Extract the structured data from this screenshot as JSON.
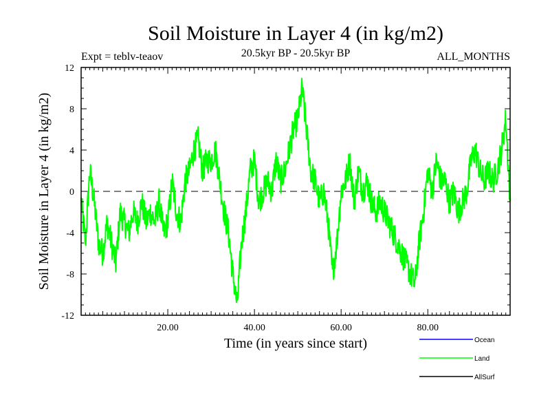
{
  "chart_data": {
    "type": "line",
    "title": "Soil Moisture in Layer 4 (in kg/m2)",
    "subtitle_left": "Expt = teblv-teaov",
    "subtitle_center": "20.5kyr BP - 20.5kyr BP",
    "subtitle_right": "ALL_MONTHS",
    "xlabel": "Time (in years since start)",
    "ylabel": "Soil Moisture in Layer 4 (in kg/m2)",
    "xlim": [
      0,
      99
    ],
    "ylim": [
      -12,
      12
    ],
    "x_ticks": [
      20,
      40,
      60,
      80
    ],
    "x_tick_labels": [
      "20.00",
      "40.00",
      "60.00",
      "80.00"
    ],
    "y_ticks": [
      -12,
      -8,
      -4,
      0,
      4,
      8,
      12
    ],
    "y_tick_labels": [
      "-12",
      "-8",
      "-4",
      "0",
      "4",
      "8",
      "12"
    ],
    "zero_line": "dashed",
    "legend": [
      {
        "name": "Ocean",
        "color": "#0000ff"
      },
      {
        "name": "Land",
        "color": "#00ff00"
      },
      {
        "name": "AllSurf",
        "color": "#000000"
      }
    ],
    "series": [
      {
        "name": "Land",
        "color": "#00ff00",
        "x": [
          0,
          1,
          2,
          3,
          4,
          5,
          6,
          7,
          8,
          9,
          10,
          11,
          12,
          13,
          14,
          15,
          16,
          17,
          18,
          19,
          20,
          21,
          22,
          23,
          24,
          25,
          26,
          27,
          28,
          29,
          30,
          31,
          32,
          33,
          34,
          35,
          36,
          37,
          38,
          39,
          40,
          41,
          42,
          43,
          44,
          45,
          46,
          47,
          48,
          49,
          50,
          51,
          52,
          53,
          54,
          55,
          56,
          57,
          58,
          59,
          60,
          61,
          62,
          63,
          64,
          65,
          66,
          67,
          68,
          69,
          70,
          71,
          72,
          73,
          74,
          75,
          76,
          77,
          78,
          79,
          80,
          81,
          82,
          83,
          84,
          85,
          86,
          87,
          88,
          89,
          90,
          91,
          92,
          93,
          94,
          95,
          96,
          97,
          98,
          99
        ],
        "values": [
          -1,
          -5,
          2,
          -1,
          -5,
          -6,
          -3,
          -5,
          -7,
          -2,
          -3,
          -4,
          -2,
          -3,
          -1,
          -3,
          -2,
          -3,
          -1,
          -4,
          -3,
          1,
          -2,
          -3,
          1,
          2,
          4,
          5,
          2,
          3,
          3,
          4,
          1,
          -2,
          -4,
          -8,
          -11,
          -5,
          -2,
          2,
          3,
          -1,
          0,
          1,
          0,
          3,
          1,
          2,
          4,
          6,
          7,
          10,
          6,
          2,
          1,
          -1,
          0,
          -3,
          -8,
          -5,
          0,
          1,
          3,
          -1,
          2,
          0,
          1,
          -1,
          -2,
          -1,
          -2,
          -3,
          -4,
          -5,
          -6,
          -7,
          -8,
          -9,
          -5,
          -2,
          2,
          0,
          3,
          1,
          1,
          -1,
          0,
          -2,
          -1,
          0,
          3,
          4,
          2,
          1,
          2,
          1,
          2,
          4,
          7,
          -1
        ]
      }
    ]
  }
}
